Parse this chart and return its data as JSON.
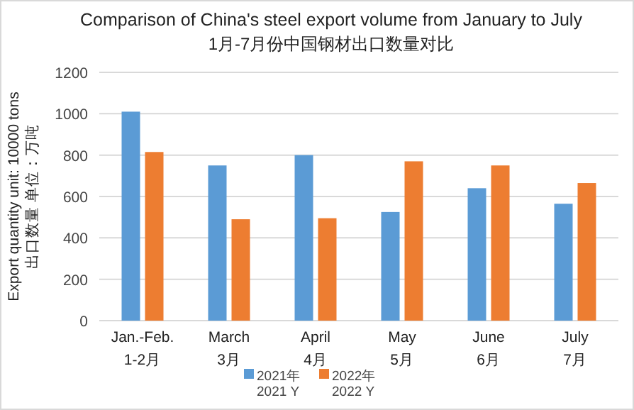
{
  "chart_data": {
    "type": "bar",
    "title": "Comparison of China's steel export volume from January to July",
    "subtitle": "1月-7月份中国钢材出口数量对比",
    "ylabel": "Export quantity unit: 10000 tons\n出口数量 单位：万吨",
    "categories": [
      "Jan.-Feb.\n1-2月",
      "March\n3月",
      "April\n4月",
      "May\n5月",
      "June\n6月",
      "July\n7月"
    ],
    "series": [
      {
        "name": "2021年\n2021 Y",
        "color": "#5b9bd5",
        "values": [
          1010,
          750,
          800,
          525,
          640,
          565
        ]
      },
      {
        "name": "2022年\n2022 Y",
        "color": "#ed7d31",
        "values": [
          815,
          490,
          495,
          770,
          750,
          665
        ]
      }
    ],
    "ylim": [
      0,
      1200
    ],
    "yticks": [
      0,
      200,
      400,
      600,
      800,
      1000,
      1200
    ],
    "grid": "y",
    "legend": "bottom"
  }
}
